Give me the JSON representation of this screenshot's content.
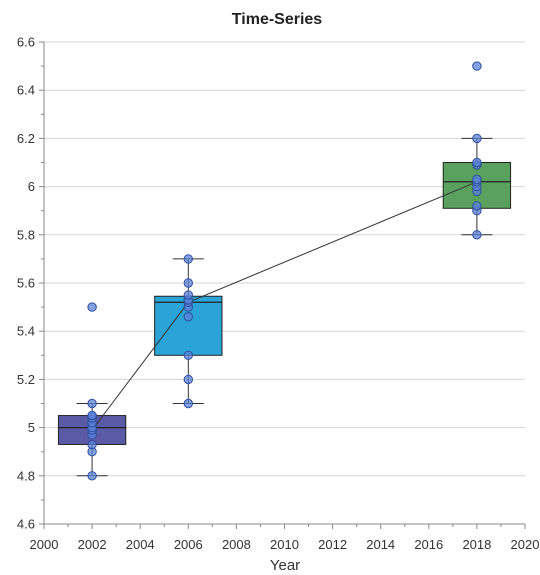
{
  "chart_data": {
    "type": "box",
    "title": "Time-Series",
    "xlabel": "Year",
    "ylabel": "",
    "xlim": [
      2000,
      2020
    ],
    "ylim": [
      4.6,
      6.6
    ],
    "x_ticks": [
      "2000",
      "2002",
      "2004",
      "2006",
      "2008",
      "2010",
      "2012",
      "2014",
      "2016",
      "2018",
      "2020"
    ],
    "y_ticks": [
      "4.6",
      "4.8",
      "5",
      "5.2",
      "5.4",
      "5.6",
      "5.8",
      "6",
      "6.2",
      "6.4",
      "6.6"
    ],
    "grid": true,
    "boxes": [
      {
        "x": 2002,
        "color": "#5a5aa6",
        "whisker_low": 4.8,
        "q1": 4.93,
        "median": 5.0,
        "q3": 5.05,
        "whisker_high": 5.1,
        "mean": 4.99,
        "points": [
          4.8,
          4.9,
          4.93,
          4.97,
          4.99,
          5.0,
          5.02,
          5.04,
          5.05,
          5.05,
          5.1,
          5.5
        ]
      },
      {
        "x": 2006,
        "color": "#2aa3d6",
        "whisker_low": 5.1,
        "q1": 5.3,
        "median": 5.52,
        "q3": 5.545,
        "whisker_high": 5.7,
        "mean": 5.52,
        "points": [
          5.1,
          5.2,
          5.3,
          5.46,
          5.5,
          5.52,
          5.53,
          5.55,
          5.6,
          5.7
        ]
      },
      {
        "x": 2018,
        "color": "#5aa15f",
        "whisker_low": 5.8,
        "q1": 5.91,
        "median": 6.02,
        "q3": 6.1,
        "whisker_high": 6.2,
        "mean": 6.02,
        "points": [
          5.8,
          5.9,
          5.92,
          5.98,
          6.0,
          6.02,
          6.03,
          6.09,
          6.1,
          6.2,
          6.5
        ]
      }
    ],
    "trend_line": {
      "x": [
        2002,
        2006,
        2018
      ],
      "y": [
        4.99,
        5.52,
        6.02
      ]
    }
  }
}
